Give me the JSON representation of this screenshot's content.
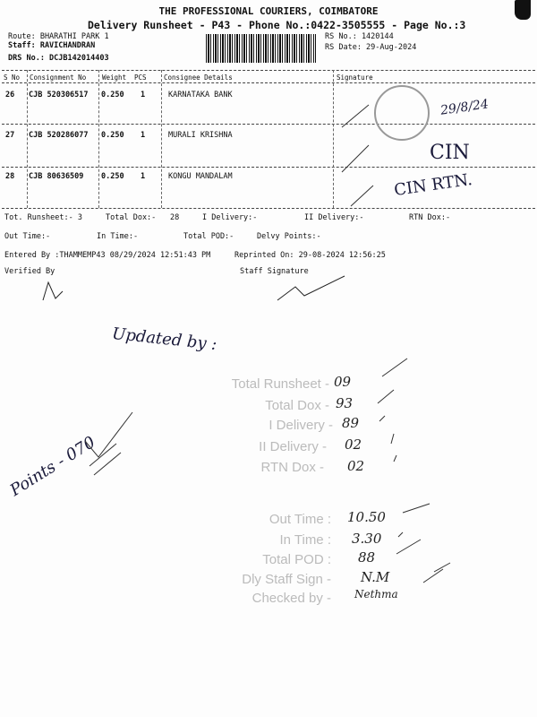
{
  "header": {
    "company": "THE PROFESSIONAL COURIERS, COIMBATORE",
    "subtitle": "Delivery Runsheet - P43 - Phone No.:0422-3505555 - Page No.:3",
    "route": "Route: BHARATHI PARK 1",
    "staff": "Staff: RAVICHANDRAN",
    "drs": "DRS No.: DCJB142014403",
    "rs_no": "RS No.: 1420144",
    "rs_date": "RS Date: 29-Aug-2024"
  },
  "table": {
    "columns": [
      "S No",
      "Consignment No",
      "Weight",
      "PCS",
      "Consignee Details",
      "Signature"
    ],
    "rows": [
      {
        "sno": "26",
        "cons": "CJB 520306517",
        "weight": "0.250",
        "pcs": "1",
        "consignee": "KARNATAKA BANK",
        "sign": "29/8/24"
      },
      {
        "sno": "27",
        "cons": "CJB 520286077",
        "weight": "0.250",
        "pcs": "1",
        "consignee": "MURALI KRISHNA",
        "sign": "CIN"
      },
      {
        "sno": "28",
        "cons": "CJB 80636509",
        "weight": "0.250",
        "pcs": "1",
        "consignee": "KONGU MANDALAM",
        "sign": "CIN RTN."
      }
    ]
  },
  "summary": {
    "tot_runsheet": "Tot. Runsheet:- 3",
    "total_dox": "Total Dox:-",
    "total_dox_val": "28",
    "i_delivery": "I Delivery:-",
    "ii_delivery": "II Delivery:-",
    "rtn_dox": "RTN Dox:-",
    "out_time": "Out Time:-",
    "in_time": "In Time:-",
    "total_pod": "Total POD:-",
    "delvy_points": "Delvy Points:-",
    "entered_by": "Entered By :THAMMEMP43 08/29/2024 12:51:43 PM",
    "reprinted": "Reprinted On: 29-08-2024 12:56:25",
    "verified_by": "Verified By",
    "staff_signature": "Staff Signature"
  },
  "handwritten": {
    "updated_by": "Updated by :",
    "points": "Points - 070",
    "stamp_rows": [
      {
        "label": "Total Runsheet -",
        "value": "09"
      },
      {
        "label": "Total Dox -",
        "value": "93"
      },
      {
        "label": "I Delivery -",
        "value": "89"
      },
      {
        "label": "II Delivery -",
        "value": "02"
      },
      {
        "label": "RTN Dox -",
        "value": "02"
      },
      {
        "label": "Out Time :",
        "value": "10.50"
      },
      {
        "label": "In Time :",
        "value": "3.30"
      },
      {
        "label": "Total POD :",
        "value": "88"
      },
      {
        "label": "Dly Staff Sign -",
        "value": "N.M"
      },
      {
        "label": "Checked by -",
        "value": "Nethma"
      }
    ]
  }
}
